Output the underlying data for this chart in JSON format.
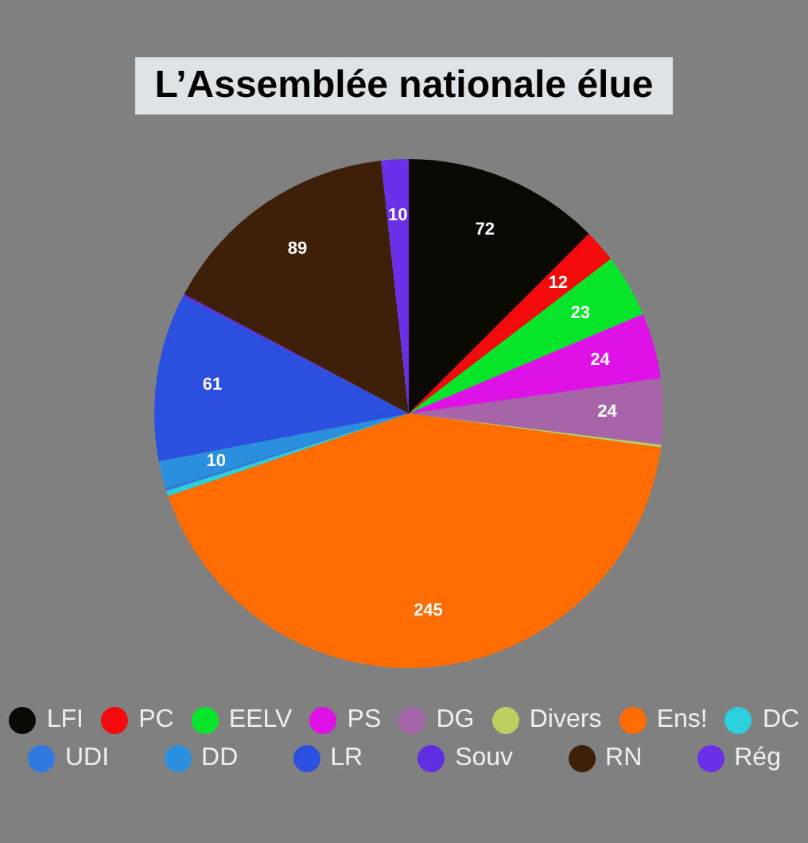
{
  "chart_data": {
    "type": "pie",
    "title": "L’Assemblée nationale élue",
    "categories": [
      "LFI",
      "PC",
      "EELV",
      "PS",
      "DG",
      "Divers",
      "Ens!",
      "DC",
      "UDI",
      "DD",
      "LR",
      "Souv",
      "RN",
      "Rég"
    ],
    "values": [
      72,
      12,
      23,
      24,
      24,
      1,
      245,
      2,
      1,
      10,
      61,
      1,
      89,
      10
    ],
    "colors": [
      "#0c0905",
      "#f40a0a",
      "#05e62a",
      "#e011e6",
      "#a565a8",
      "#bfcc5f",
      "#ff6c00",
      "#2ccfdc",
      "#2e7ae0",
      "#2b8fe0",
      "#2b4fe0",
      "#5e2fe0",
      "#3e2008",
      "#6a2fe6"
    ],
    "value_labels": [
      "72",
      "12",
      "23",
      "24",
      "24",
      null,
      "245",
      null,
      null,
      "10",
      "61",
      null,
      "89",
      "10"
    ],
    "legend": "bottom"
  }
}
